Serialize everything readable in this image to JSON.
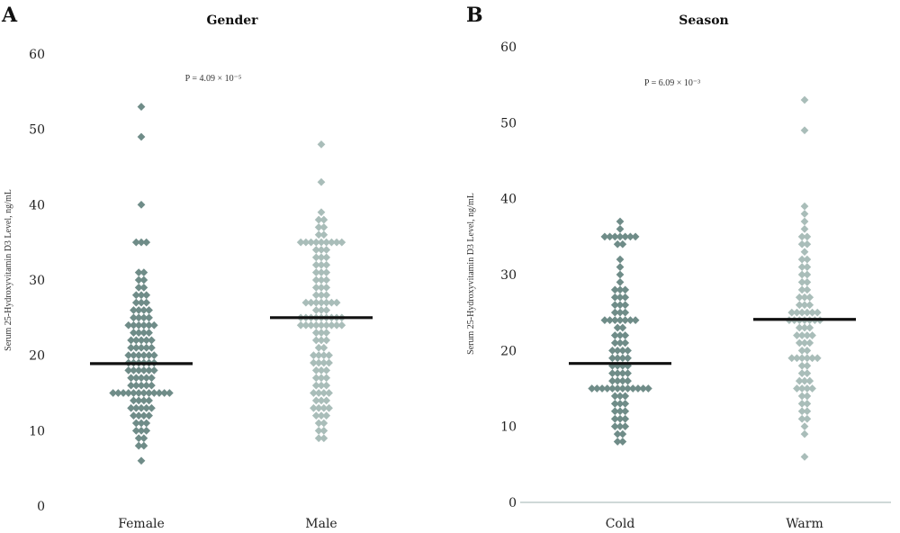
{
  "chart_data": [
    {
      "panel": "A",
      "type": "scatter",
      "title": "Gender",
      "ylabel": "Serum 25-Hydroxyvitamin D3 Level, ng/mL",
      "annotation": "P = 4.09 × 10⁻⁵",
      "ylim": [
        0,
        60
      ],
      "yticks": [
        0,
        10,
        20,
        30,
        40,
        50,
        60
      ],
      "categories": [
        "Female",
        "Male"
      ],
      "means": [
        18.9,
        25.0
      ],
      "colors": [
        "#6f8c88",
        "#a9bdb9"
      ],
      "series": [
        {
          "name": "Female",
          "values": [
            6,
            8,
            8,
            9,
            9,
            10,
            10,
            10,
            11,
            11,
            11,
            12,
            12,
            12,
            12,
            13,
            13,
            13,
            13,
            13,
            14,
            14,
            14,
            14,
            15,
            15,
            15,
            15,
            15,
            15,
            15,
            15,
            15,
            15,
            15,
            15,
            16,
            16,
            16,
            16,
            16,
            17,
            17,
            17,
            17,
            17,
            18,
            18,
            18,
            18,
            18,
            18,
            19,
            19,
            19,
            19,
            19,
            19,
            20,
            20,
            20,
            20,
            20,
            20,
            21,
            21,
            21,
            21,
            21,
            22,
            22,
            22,
            22,
            22,
            23,
            23,
            23,
            23,
            24,
            24,
            24,
            24,
            24,
            24,
            25,
            25,
            25,
            25,
            26,
            26,
            26,
            26,
            27,
            27,
            27,
            28,
            28,
            28,
            29,
            29,
            30,
            30,
            31,
            31,
            35,
            35,
            35,
            40,
            49,
            53
          ]
        },
        {
          "name": "Male",
          "values": [
            9,
            9,
            10,
            10,
            11,
            11,
            12,
            12,
            12,
            13,
            13,
            13,
            13,
            14,
            14,
            14,
            15,
            15,
            15,
            15,
            16,
            16,
            16,
            17,
            17,
            17,
            18,
            18,
            18,
            19,
            19,
            19,
            19,
            20,
            20,
            20,
            20,
            21,
            21,
            22,
            22,
            22,
            23,
            23,
            23,
            24,
            24,
            24,
            24,
            24,
            24,
            24,
            24,
            24,
            25,
            25,
            25,
            25,
            25,
            25,
            25,
            25,
            25,
            26,
            26,
            26,
            27,
            27,
            27,
            27,
            27,
            27,
            27,
            28,
            28,
            28,
            29,
            29,
            29,
            30,
            30,
            30,
            31,
            31,
            31,
            32,
            32,
            32,
            33,
            33,
            33,
            34,
            34,
            34,
            35,
            35,
            35,
            35,
            35,
            35,
            35,
            35,
            35,
            36,
            36,
            37,
            37,
            38,
            38,
            39,
            43,
            48
          ]
        }
      ],
      "grid": false
    },
    {
      "panel": "B",
      "type": "scatter",
      "title": "Season",
      "ylabel": "Serum 25-Hydroxyvitamin D3 Level, ng/mL",
      "annotation": "P = 6.09 × 10⁻³",
      "ylim": [
        0,
        60
      ],
      "yticks": [
        0,
        10,
        20,
        30,
        40,
        50,
        60
      ],
      "categories": [
        "Cold",
        "Warm"
      ],
      "means": [
        18.3,
        24.1
      ],
      "colors": [
        "#6f8c88",
        "#a9bdb9"
      ],
      "series": [
        {
          "name": "Cold",
          "values": [
            8,
            8,
            9,
            9,
            10,
            10,
            10,
            11,
            11,
            11,
            12,
            12,
            12,
            13,
            13,
            13,
            14,
            14,
            14,
            15,
            15,
            15,
            15,
            15,
            15,
            15,
            15,
            15,
            15,
            15,
            15,
            16,
            16,
            16,
            16,
            17,
            17,
            17,
            17,
            18,
            18,
            18,
            18,
            19,
            19,
            19,
            19,
            20,
            20,
            20,
            20,
            21,
            21,
            21,
            22,
            22,
            22,
            23,
            23,
            24,
            24,
            24,
            24,
            24,
            24,
            24,
            25,
            25,
            25,
            26,
            26,
            26,
            27,
            27,
            27,
            28,
            28,
            28,
            29,
            30,
            31,
            32,
            34,
            34,
            35,
            35,
            35,
            35,
            35,
            35,
            35,
            36,
            37
          ]
        },
        {
          "name": "Warm",
          "values": [
            6,
            9,
            10,
            11,
            11,
            12,
            12,
            13,
            13,
            14,
            14,
            15,
            15,
            15,
            15,
            16,
            16,
            16,
            17,
            17,
            18,
            18,
            19,
            19,
            19,
            19,
            19,
            19,
            20,
            20,
            21,
            21,
            21,
            22,
            22,
            22,
            22,
            23,
            23,
            23,
            24,
            24,
            24,
            24,
            24,
            24,
            24,
            25,
            25,
            25,
            25,
            25,
            25,
            26,
            26,
            26,
            27,
            27,
            27,
            28,
            28,
            29,
            29,
            30,
            30,
            31,
            31,
            32,
            32,
            33,
            34,
            34,
            35,
            35,
            36,
            37,
            38,
            39,
            49,
            53
          ]
        }
      ],
      "grid": false
    }
  ]
}
